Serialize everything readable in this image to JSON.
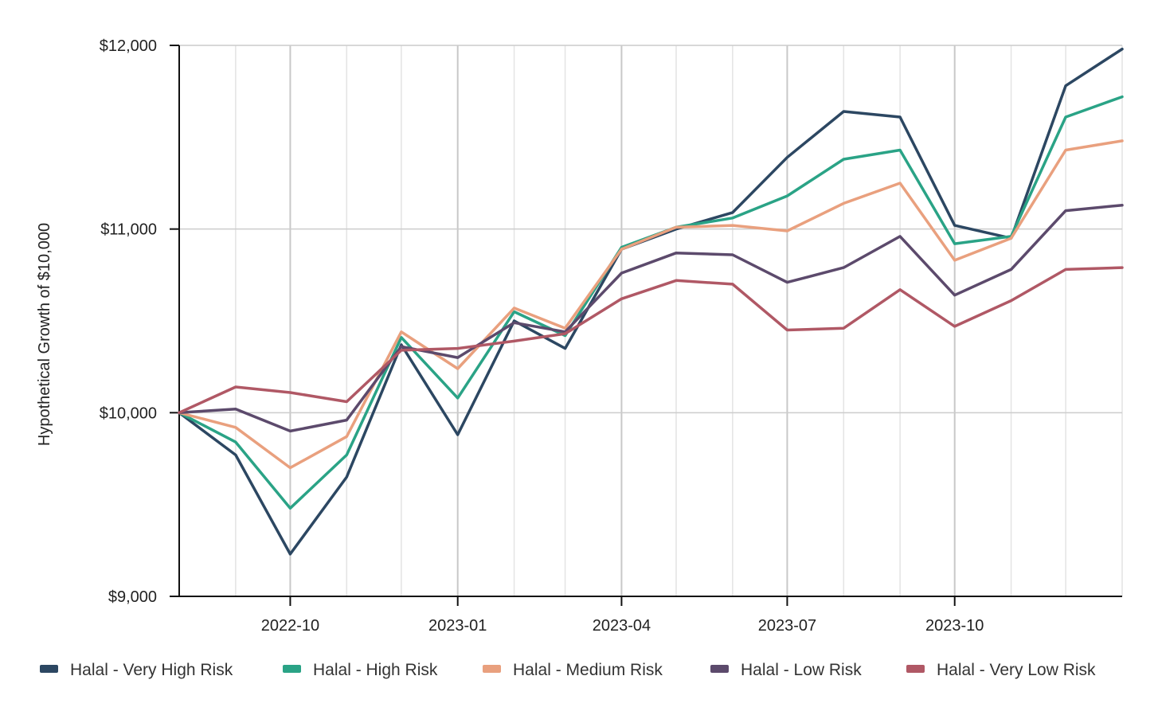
{
  "chart_data": {
    "type": "line",
    "ylabel": "Hypothetical Growth of $10,000",
    "xlabel": "",
    "ylim": [
      9000,
      12000
    ],
    "y_ticks": [
      9000,
      10000,
      11000,
      12000
    ],
    "y_tick_labels": [
      "$9,000",
      "$10,000",
      "$11,000",
      "$12,000"
    ],
    "x": [
      "2022-08-01",
      "2022-09-01",
      "2022-10-01",
      "2022-11-01",
      "2022-12-01",
      "2023-01-01",
      "2023-02-01",
      "2023-03-01",
      "2023-04-01",
      "2023-05-01",
      "2023-06-01",
      "2023-07-01",
      "2023-08-01",
      "2023-09-01",
      "2023-10-01",
      "2023-11-01",
      "2023-12-01",
      "2024-01-01"
    ],
    "x_ticks": [
      "2022-10-01",
      "2023-01-01",
      "2023-04-01",
      "2023-07-01",
      "2023-10-01"
    ],
    "x_tick_labels": [
      "2022-10",
      "2023-01",
      "2023-04",
      "2023-07",
      "2023-10"
    ],
    "grid": true,
    "legend_position": "bottom",
    "series": [
      {
        "name": "Halal - Very High Risk",
        "color": "#2c4762",
        "values": [
          10000,
          9770,
          9230,
          9650,
          10370,
          9880,
          10500,
          10350,
          10890,
          11000,
          11090,
          11390,
          11640,
          11610,
          11020,
          10950,
          11780,
          11980
        ]
      },
      {
        "name": "Halal - High Risk",
        "color": "#2aa386",
        "values": [
          10000,
          9840,
          9480,
          9770,
          10410,
          10080,
          10550,
          10420,
          10900,
          11010,
          11060,
          11180,
          11380,
          11430,
          10920,
          10960,
          11610,
          11720
        ]
      },
      {
        "name": "Halal - Medium Risk",
        "color": "#e9a07e",
        "values": [
          10000,
          9920,
          9700,
          9870,
          10440,
          10240,
          10570,
          10460,
          10890,
          11010,
          11020,
          10990,
          11140,
          11250,
          10830,
          10950,
          11430,
          11480
        ]
      },
      {
        "name": "Halal - Low Risk",
        "color": "#5c4a6c",
        "values": [
          10000,
          10020,
          9900,
          9960,
          10360,
          10300,
          10490,
          10440,
          10760,
          10870,
          10860,
          10710,
          10790,
          10960,
          10640,
          10780,
          11100,
          11130
        ]
      },
      {
        "name": "Halal - Very Low Risk",
        "color": "#b05865",
        "values": [
          10000,
          10140,
          10110,
          10060,
          10340,
          10350,
          10390,
          10430,
          10620,
          10720,
          10700,
          10450,
          10460,
          10670,
          10470,
          10610,
          10780,
          10790
        ]
      }
    ]
  }
}
